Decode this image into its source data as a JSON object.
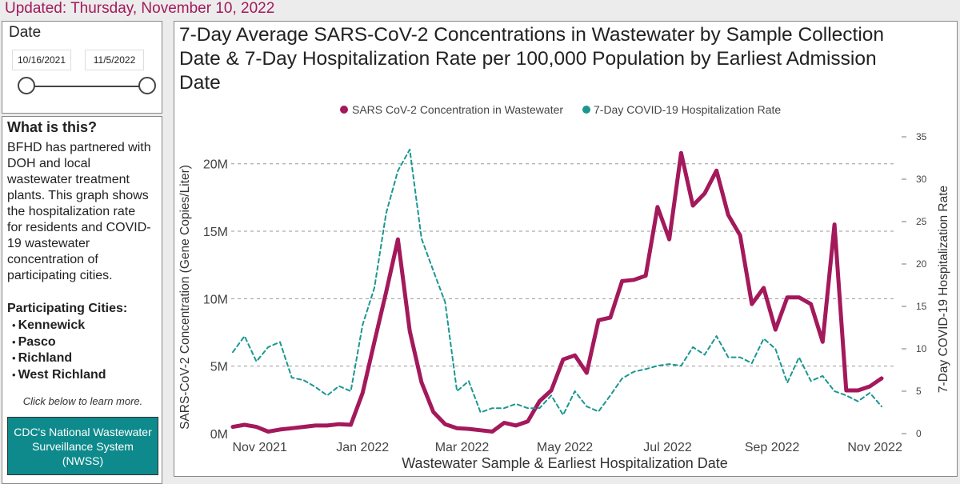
{
  "updated": {
    "label": "Updated:",
    "date": "Thursday, November 10, 2022"
  },
  "date_filter": {
    "title": "Date",
    "start": "10/16/2021",
    "end": "11/5/2022"
  },
  "info": {
    "title": "What is this?",
    "text": "BFHD has partnered with DOH and local wastewater treatment plants. This graph shows the hospitalization rate for residents and COVID-19 wastewater concentration of participating cities.",
    "cities_title": "Participating Cities:",
    "cities": [
      "Kennewick",
      "Pasco",
      "Richland",
      "West Richland"
    ],
    "learn_more": "Click below to learn more.",
    "cdc_button": "CDC's National Wastewater Surveillance System (NWSS)"
  },
  "colors": {
    "wastewater": "#a3195b",
    "hospitalization": "#1a9790"
  },
  "chart_data": {
    "type": "line",
    "title": "7-Day Average SARS-CoV-2 Concentrations in Wastewater by Sample Collection Date & 7-Day Hospitalization Rate per 100,000 Population by Earliest Admission Date",
    "xlabel": "Wastewater Sample & Earliest Hospitalization Date",
    "ylabel": "SARS-CoV-2 Concentration (Gene Copies/Liter)",
    "y2label": "7-Day COVID-19 Hospitalization Rate",
    "legend_position": "top",
    "x_ticks": [
      "2021-11-01",
      "2022-01-01",
      "2022-03-01",
      "2022-05-01",
      "2022-07-01",
      "2022-09-01",
      "2022-11-01"
    ],
    "x_tick_labels": [
      "Nov 2021",
      "Jan 2022",
      "Mar 2022",
      "May 2022",
      "Jul 2022",
      "Sep 2022",
      "Nov 2022"
    ],
    "xlim": [
      "2021-10-16",
      "2022-11-14"
    ],
    "ylim": [
      0,
      22000000
    ],
    "y_ticks": [
      0,
      5000000,
      10000000,
      15000000,
      20000000
    ],
    "y_tick_labels": [
      "0M",
      "5M",
      "10M",
      "15M",
      "20M"
    ],
    "y2lim": [
      0,
      35
    ],
    "y2_ticks": [
      0,
      5,
      10,
      15,
      20,
      25,
      30,
      35
    ],
    "y2_tick_labels": [
      "0",
      "5",
      "10",
      "15",
      "20",
      "25",
      "30",
      "35"
    ],
    "series": [
      {
        "name": "SARS CoV-2 Concentration in Wastewater",
        "style": "solid",
        "axis": "left",
        "points": [
          [
            "2021-10-16",
            500000
          ],
          [
            "2021-10-23",
            650000
          ],
          [
            "2021-10-30",
            500000
          ],
          [
            "2021-11-06",
            150000
          ],
          [
            "2021-11-13",
            300000
          ],
          [
            "2021-11-20",
            400000
          ],
          [
            "2021-11-27",
            500000
          ],
          [
            "2021-12-04",
            600000
          ],
          [
            "2021-12-11",
            600000
          ],
          [
            "2021-12-18",
            700000
          ],
          [
            "2021-12-25",
            650000
          ],
          [
            "2022-01-01",
            3000000
          ],
          [
            "2022-01-08",
            6800000
          ],
          [
            "2022-01-15",
            10500000
          ],
          [
            "2022-01-22",
            14400000
          ],
          [
            "2022-01-29",
            7600000
          ],
          [
            "2022-02-05",
            3800000
          ],
          [
            "2022-02-12",
            1600000
          ],
          [
            "2022-02-19",
            700000
          ],
          [
            "2022-02-26",
            400000
          ],
          [
            "2022-03-05",
            350000
          ],
          [
            "2022-03-12",
            250000
          ],
          [
            "2022-03-19",
            150000
          ],
          [
            "2022-03-26",
            800000
          ],
          [
            "2022-04-02",
            600000
          ],
          [
            "2022-04-09",
            900000
          ],
          [
            "2022-04-16",
            2400000
          ],
          [
            "2022-04-23",
            3200000
          ],
          [
            "2022-04-30",
            5500000
          ],
          [
            "2022-05-07",
            5800000
          ],
          [
            "2022-05-14",
            4500000
          ],
          [
            "2022-05-21",
            8400000
          ],
          [
            "2022-05-28",
            8600000
          ],
          [
            "2022-06-04",
            11300000
          ],
          [
            "2022-06-11",
            11400000
          ],
          [
            "2022-06-18",
            11700000
          ],
          [
            "2022-06-25",
            16800000
          ],
          [
            "2022-07-02",
            14400000
          ],
          [
            "2022-07-09",
            20800000
          ],
          [
            "2022-07-16",
            16900000
          ],
          [
            "2022-07-23",
            17800000
          ],
          [
            "2022-07-30",
            19500000
          ],
          [
            "2022-08-06",
            16200000
          ],
          [
            "2022-08-13",
            14700000
          ],
          [
            "2022-08-20",
            9600000
          ],
          [
            "2022-08-27",
            10800000
          ],
          [
            "2022-09-03",
            7700000
          ],
          [
            "2022-09-10",
            10100000
          ],
          [
            "2022-09-17",
            10100000
          ],
          [
            "2022-09-24",
            9600000
          ],
          [
            "2022-10-01",
            6800000
          ],
          [
            "2022-10-08",
            15500000
          ],
          [
            "2022-10-15",
            3200000
          ],
          [
            "2022-10-22",
            3200000
          ],
          [
            "2022-10-29",
            3500000
          ],
          [
            "2022-11-05",
            4100000
          ]
        ]
      },
      {
        "name": "7-Day COVID-19 Hospitalization Rate",
        "style": "dashed",
        "axis": "right",
        "points": [
          [
            "2021-10-16",
            9.6
          ],
          [
            "2021-10-23",
            11.5
          ],
          [
            "2021-10-30",
            8.5
          ],
          [
            "2021-11-06",
            10.2
          ],
          [
            "2021-11-13",
            10.8
          ],
          [
            "2021-11-20",
            6.6
          ],
          [
            "2021-11-27",
            6.3
          ],
          [
            "2021-12-04",
            5.5
          ],
          [
            "2021-12-11",
            4.5
          ],
          [
            "2021-12-18",
            5.6
          ],
          [
            "2021-12-25",
            5.0
          ],
          [
            "2022-01-01",
            12.8
          ],
          [
            "2022-01-08",
            17.2
          ],
          [
            "2022-01-15",
            26.0
          ],
          [
            "2022-01-22",
            31.0
          ],
          [
            "2022-01-29",
            33.5
          ],
          [
            "2022-02-05",
            23.0
          ],
          [
            "2022-02-12",
            19.2
          ],
          [
            "2022-02-19",
            15.5
          ],
          [
            "2022-02-26",
            5.0
          ],
          [
            "2022-03-05",
            6.2
          ],
          [
            "2022-03-12",
            2.5
          ],
          [
            "2022-03-19",
            3.0
          ],
          [
            "2022-03-26",
            3.0
          ],
          [
            "2022-04-02",
            3.5
          ],
          [
            "2022-04-09",
            3.0
          ],
          [
            "2022-04-16",
            3.0
          ],
          [
            "2022-04-23",
            4.5
          ],
          [
            "2022-04-30",
            2.2
          ],
          [
            "2022-05-07",
            5.0
          ],
          [
            "2022-05-14",
            3.2
          ],
          [
            "2022-05-21",
            2.6
          ],
          [
            "2022-05-28",
            4.5
          ],
          [
            "2022-06-04",
            6.5
          ],
          [
            "2022-06-11",
            7.3
          ],
          [
            "2022-06-18",
            7.6
          ],
          [
            "2022-06-25",
            8.0
          ],
          [
            "2022-07-02",
            8.2
          ],
          [
            "2022-07-09",
            8.0
          ],
          [
            "2022-07-16",
            10.2
          ],
          [
            "2022-07-23",
            9.3
          ],
          [
            "2022-07-30",
            11.5
          ],
          [
            "2022-08-06",
            9.0
          ],
          [
            "2022-08-13",
            9.0
          ],
          [
            "2022-08-20",
            8.3
          ],
          [
            "2022-08-27",
            11.2
          ],
          [
            "2022-09-03",
            10.0
          ],
          [
            "2022-09-10",
            6.0
          ],
          [
            "2022-09-17",
            9.0
          ],
          [
            "2022-09-24",
            6.2
          ],
          [
            "2022-10-01",
            6.8
          ],
          [
            "2022-10-08",
            5.0
          ],
          [
            "2022-10-15",
            4.5
          ],
          [
            "2022-10-22",
            3.8
          ],
          [
            "2022-10-29",
            4.8
          ],
          [
            "2022-11-05",
            3.2
          ]
        ]
      }
    ]
  }
}
